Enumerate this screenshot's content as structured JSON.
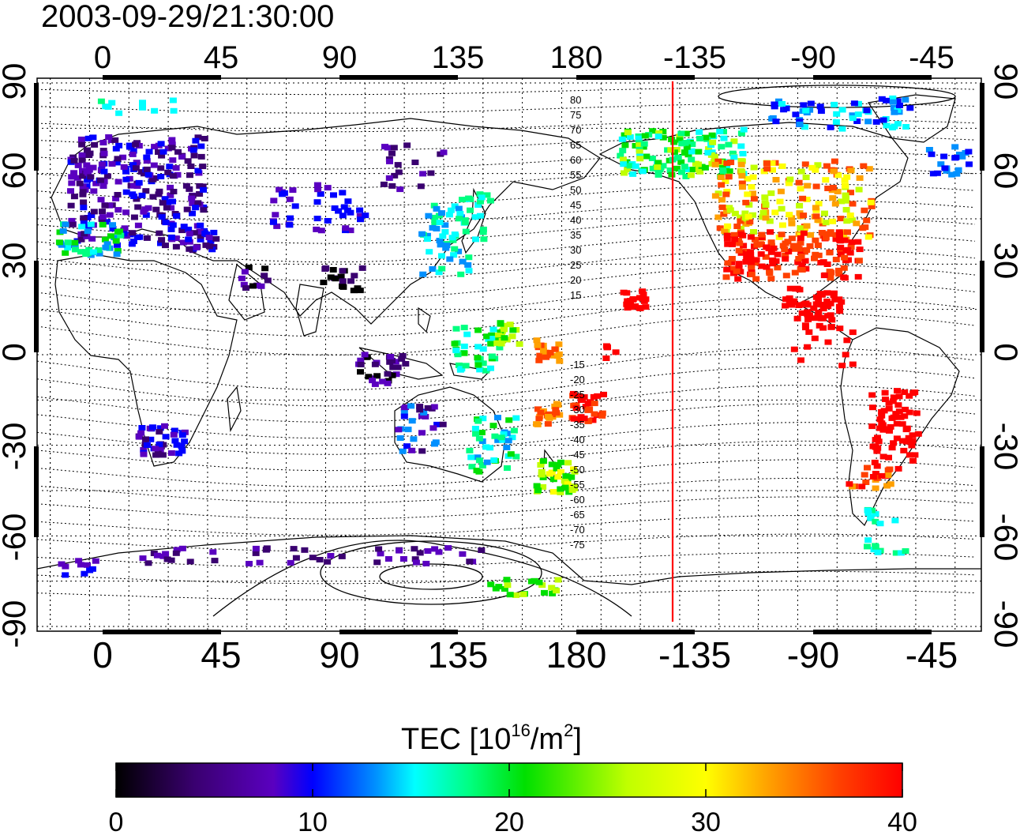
{
  "title": "2003-09-29/21:30:00",
  "map": {
    "lon_ticks": [
      "0",
      "45",
      "90",
      "135",
      "180",
      "-135",
      "-90",
      "-45"
    ],
    "lat_ticks": [
      "90",
      "60",
      "30",
      "0",
      "-30",
      "-60",
      "-90"
    ],
    "contour_labels_north": [
      "80",
      "75",
      "70",
      "65",
      "60",
      "55",
      "50",
      "45",
      "40",
      "35",
      "30",
      "25",
      "20",
      "15"
    ],
    "contour_labels_south": [
      "-15",
      "-20",
      "-25",
      "-30",
      "-35",
      "-40",
      "-45",
      "-50",
      "-55",
      "-60",
      "-65",
      "-70",
      "-75"
    ],
    "terminator_color": "#ff0000",
    "terminator_longitude": "-142"
  },
  "colorbar": {
    "label_prefix": "TEC  [10",
    "label_exp1": "16",
    "label_mid": "/m",
    "label_exp2": "2",
    "label_suffix": "]",
    "ticks": [
      "0",
      "10",
      "20",
      "30",
      "40"
    ],
    "colors": [
      "#000000",
      "#3a0070",
      "#5a00c0",
      "#0000ff",
      "#0090ff",
      "#00ffff",
      "#00ff80",
      "#00e000",
      "#c0ff00",
      "#ffff00",
      "#ffa000",
      "#ff4000",
      "#ff0000"
    ]
  }
}
